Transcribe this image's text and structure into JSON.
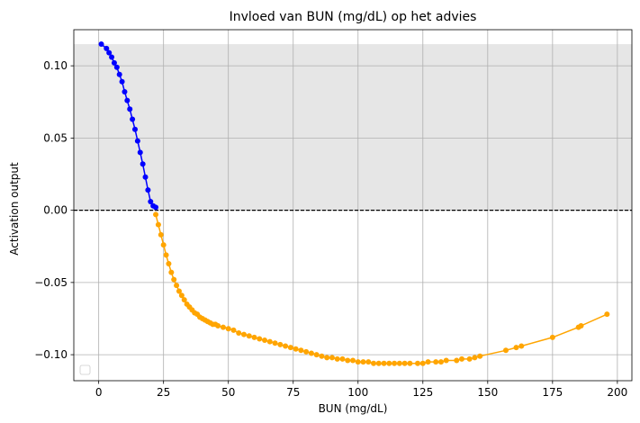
{
  "chart_data": {
    "type": "line",
    "title": "Invloed van BUN (mg/dL) op het advies",
    "xlabel": "BUN (mg/dL)",
    "ylabel": "Activation output",
    "xlim": [
      -9.6,
      205.6
    ],
    "ylim": [
      -0.118,
      0.125
    ],
    "xticks": [
      0,
      25,
      50,
      75,
      100,
      125,
      150,
      175,
      200
    ],
    "yticks": [
      -0.1,
      -0.05,
      0.0,
      0.05,
      0.1
    ],
    "xtick_labels": [
      "0",
      "25",
      "50",
      "75",
      "100",
      "125",
      "150",
      "175",
      "200"
    ],
    "ytick_labels": [
      "−0.10",
      "−0.05",
      "0.00",
      "0.05",
      "0.10"
    ],
    "grid": true,
    "legend": "lower-left (empty)",
    "shaded_region": {
      "y_from": 0.0,
      "y_to": 0.115,
      "color": "#e6e6e6"
    },
    "reference_line": {
      "y": 0.0,
      "style": "dashed",
      "color": "#000000"
    },
    "series": [
      {
        "color": "#0000ff",
        "x": [
          1,
          3,
          4,
          5,
          6,
          7,
          8,
          9,
          10,
          11,
          12,
          13,
          14,
          15,
          16,
          17,
          18,
          19,
          20,
          21,
          22
        ],
        "y": [
          0.115,
          0.112,
          0.109,
          0.106,
          0.102,
          0.099,
          0.094,
          0.089,
          0.082,
          0.076,
          0.07,
          0.063,
          0.056,
          0.048,
          0.04,
          0.032,
          0.023,
          0.014,
          0.006,
          0.003,
          0.002
        ]
      },
      {
        "color": "#ffa500",
        "x": [
          22,
          23,
          24,
          25,
          26,
          27,
          28,
          29,
          30,
          31,
          32,
          33,
          34,
          35,
          36,
          37,
          38,
          39,
          40,
          41,
          42,
          43,
          44,
          45,
          46,
          48,
          50,
          52,
          54,
          56,
          58,
          60,
          62,
          64,
          66,
          68,
          70,
          72,
          74,
          76,
          78,
          80,
          82,
          84,
          86,
          88,
          90,
          92,
          94,
          96,
          98,
          100,
          102,
          104,
          106,
          108,
          110,
          112,
          114,
          116,
          118,
          120,
          123,
          125,
          127,
          130,
          132,
          134,
          138,
          140,
          143,
          145,
          147,
          157,
          161,
          163,
          175,
          185,
          186,
          196
        ],
        "y": [
          -0.003,
          -0.01,
          -0.017,
          -0.024,
          -0.031,
          -0.037,
          -0.043,
          -0.048,
          -0.052,
          -0.056,
          -0.059,
          -0.062,
          -0.065,
          -0.067,
          -0.069,
          -0.071,
          -0.072,
          -0.074,
          -0.075,
          -0.076,
          -0.077,
          -0.078,
          -0.079,
          -0.079,
          -0.08,
          -0.081,
          -0.082,
          -0.083,
          -0.085,
          -0.086,
          -0.087,
          -0.088,
          -0.089,
          -0.09,
          -0.091,
          -0.092,
          -0.093,
          -0.094,
          -0.095,
          -0.096,
          -0.097,
          -0.098,
          -0.099,
          -0.1,
          -0.101,
          -0.102,
          -0.102,
          -0.103,
          -0.103,
          -0.104,
          -0.104,
          -0.105,
          -0.105,
          -0.105,
          -0.106,
          -0.106,
          -0.106,
          -0.106,
          -0.106,
          -0.106,
          -0.106,
          -0.106,
          -0.106,
          -0.106,
          -0.105,
          -0.105,
          -0.105,
          -0.104,
          -0.104,
          -0.103,
          -0.103,
          -0.102,
          -0.101,
          -0.097,
          -0.095,
          -0.094,
          -0.088,
          -0.081,
          -0.08,
          -0.072
        ]
      }
    ]
  }
}
